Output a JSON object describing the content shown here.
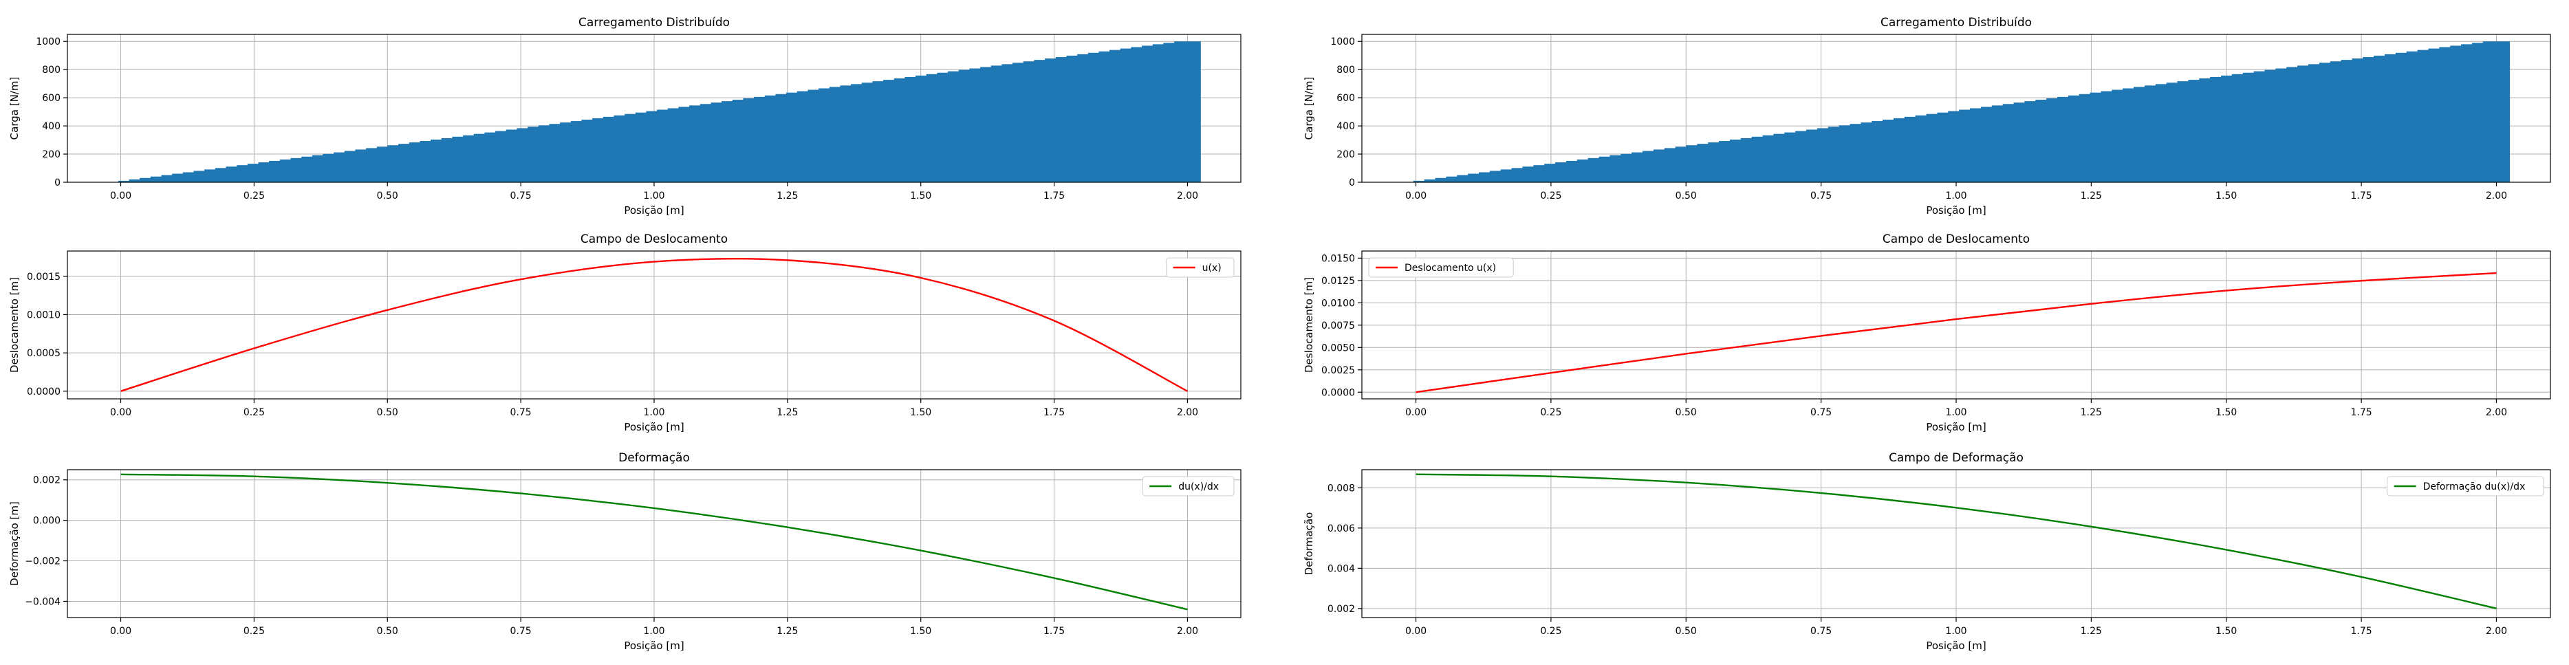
{
  "chart_data": [
    {
      "id": "left_load",
      "type": "bar",
      "title": "Carregamento Distribuído",
      "xlabel": "Posição [m]",
      "ylabel": "Carga [N/m]",
      "xlim": [
        -0.1,
        2.1
      ],
      "ylim": [
        0,
        1050
      ],
      "xticks": [
        0.0,
        0.25,
        0.5,
        0.75,
        1.0,
        1.25,
        1.5,
        1.75,
        2.0
      ],
      "xtick_labels": [
        "0.00",
        "0.25",
        "0.50",
        "0.75",
        "1.00",
        "1.25",
        "1.50",
        "1.75",
        "2.00"
      ],
      "yticks": [
        0,
        200,
        400,
        600,
        800,
        1000
      ],
      "ytick_labels": [
        "0",
        "200",
        "400",
        "600",
        "800",
        "1000"
      ],
      "grid": true,
      "color": "#1f77b4",
      "x_start": 0.0,
      "x_end": 2.0,
      "n_bars": 100,
      "bar_width": 0.05,
      "load_start": 0,
      "load_end": 1000
    },
    {
      "id": "left_disp",
      "type": "line",
      "title": "Campo de Deslocamento",
      "xlabel": "Posição [m]",
      "ylabel": "Deslocamento [m]",
      "xlim": [
        -0.1,
        2.1
      ],
      "ylim": [
        -0.0001,
        0.00183
      ],
      "xticks": [
        0.0,
        0.25,
        0.5,
        0.75,
        1.0,
        1.25,
        1.5,
        1.75,
        2.0
      ],
      "xtick_labels": [
        "0.00",
        "0.25",
        "0.50",
        "0.75",
        "1.00",
        "1.25",
        "1.50",
        "1.75",
        "2.00"
      ],
      "yticks": [
        0.0,
        0.0005,
        0.001,
        0.0015
      ],
      "ytick_labels": [
        "0.0000",
        "0.0005",
        "0.0010",
        "0.0015"
      ],
      "grid": true,
      "legend": "top-right",
      "series": [
        {
          "name": "u(x)",
          "color": "#ff0000",
          "x": [
            0.0,
            0.25,
            0.5,
            0.75,
            1.0,
            1.25,
            1.5,
            1.75,
            2.0
          ],
          "y": [
            0.0,
            0.00056,
            0.00106,
            0.00146,
            0.00169,
            0.00171,
            0.00148,
            0.00092,
            0.0
          ]
        }
      ]
    },
    {
      "id": "left_strain",
      "type": "line",
      "title": "Deformação",
      "xlabel": "Posição [m]",
      "ylabel": "Deformação [m]",
      "xlim": [
        -0.1,
        2.1
      ],
      "ylim": [
        -0.0048,
        0.0025
      ],
      "xticks": [
        0.0,
        0.25,
        0.5,
        0.75,
        1.0,
        1.25,
        1.5,
        1.75,
        2.0
      ],
      "xtick_labels": [
        "0.00",
        "0.25",
        "0.50",
        "0.75",
        "1.00",
        "1.25",
        "1.50",
        "1.75",
        "2.00"
      ],
      "yticks": [
        -0.004,
        -0.002,
        0.0,
        0.002
      ],
      "ytick_labels": [
        "−0.004",
        "−0.002",
        "0.000",
        "0.002"
      ],
      "grid": true,
      "legend": "top-right",
      "series": [
        {
          "name": "du(x)/dx",
          "color": "#008000",
          "x": [
            0.0,
            0.25,
            0.5,
            0.75,
            1.0,
            1.25,
            1.5,
            1.75,
            2.0
          ],
          "y": [
            0.00227,
            0.00217,
            0.00185,
            0.00133,
            0.0006,
            -0.00034,
            -0.00149,
            -0.00285,
            -0.0044
          ]
        }
      ]
    },
    {
      "id": "right_load",
      "type": "bar",
      "title": "Carregamento Distribuído",
      "xlabel": "Posição [m]",
      "ylabel": "Carga [N/m]",
      "xlim": [
        -0.1,
        2.1
      ],
      "ylim": [
        0,
        1050
      ],
      "xticks": [
        0.0,
        0.25,
        0.5,
        0.75,
        1.0,
        1.25,
        1.5,
        1.75,
        2.0
      ],
      "xtick_labels": [
        "0.00",
        "0.25",
        "0.50",
        "0.75",
        "1.00",
        "1.25",
        "1.50",
        "1.75",
        "2.00"
      ],
      "yticks": [
        0,
        200,
        400,
        600,
        800,
        1000
      ],
      "ytick_labels": [
        "0",
        "200",
        "400",
        "600",
        "800",
        "1000"
      ],
      "grid": true,
      "color": "#1f77b4",
      "x_start": 0.0,
      "x_end": 2.0,
      "n_bars": 100,
      "bar_width": 0.05,
      "load_start": 0,
      "load_end": 1000
    },
    {
      "id": "right_disp",
      "type": "line",
      "title": "Campo de Deslocamento",
      "xlabel": "Posição [m]",
      "ylabel": "Deslocamento [m]",
      "xlim": [
        -0.1,
        2.1
      ],
      "ylim": [
        -0.00075,
        0.0158
      ],
      "xticks": [
        0.0,
        0.25,
        0.5,
        0.75,
        1.0,
        1.25,
        1.5,
        1.75,
        2.0
      ],
      "xtick_labels": [
        "0.00",
        "0.25",
        "0.50",
        "0.75",
        "1.00",
        "1.25",
        "1.50",
        "1.75",
        "2.00"
      ],
      "yticks": [
        0.0,
        0.0025,
        0.005,
        0.0075,
        0.01,
        0.0125,
        0.015
      ],
      "ytick_labels": [
        "0.0000",
        "0.0025",
        "0.0050",
        "0.0075",
        "0.0100",
        "0.0125",
        "0.0150"
      ],
      "grid": true,
      "legend": "top-left",
      "series": [
        {
          "name": "Deslocamento u(x)",
          "color": "#ff0000",
          "x": [
            0.0,
            0.25,
            0.5,
            0.75,
            1.0,
            1.25,
            1.5,
            1.75,
            2.0
          ],
          "y": [
            0.0,
            0.00216,
            0.0043,
            0.0063,
            0.00817,
            0.00989,
            0.01137,
            0.01247,
            0.01333
          ]
        }
      ]
    },
    {
      "id": "right_strain",
      "type": "line",
      "title": "Campo de Deformação",
      "xlabel": "Posição [m]",
      "ylabel": "Deformação",
      "xlim": [
        -0.1,
        2.1
      ],
      "ylim": [
        0.00155,
        0.0089
      ],
      "xticks": [
        0.0,
        0.25,
        0.5,
        0.75,
        1.0,
        1.25,
        1.5,
        1.75,
        2.0
      ],
      "xtick_labels": [
        "0.00",
        "0.25",
        "0.50",
        "0.75",
        "1.00",
        "1.25",
        "1.50",
        "1.75",
        "2.00"
      ],
      "yticks": [
        0.002,
        0.004,
        0.006,
        0.008
      ],
      "ytick_labels": [
        "0.002",
        "0.004",
        "0.006",
        "0.008"
      ],
      "grid": true,
      "legend": "top-right",
      "series": [
        {
          "name": "Deformação du(x)/dx",
          "color": "#008000",
          "x": [
            0.0,
            0.25,
            0.5,
            0.75,
            1.0,
            1.25,
            1.5,
            1.75,
            2.0
          ],
          "y": [
            0.00867,
            0.00857,
            0.00826,
            0.00774,
            0.00701,
            0.00607,
            0.00492,
            0.00357,
            0.002
          ]
        }
      ]
    }
  ]
}
